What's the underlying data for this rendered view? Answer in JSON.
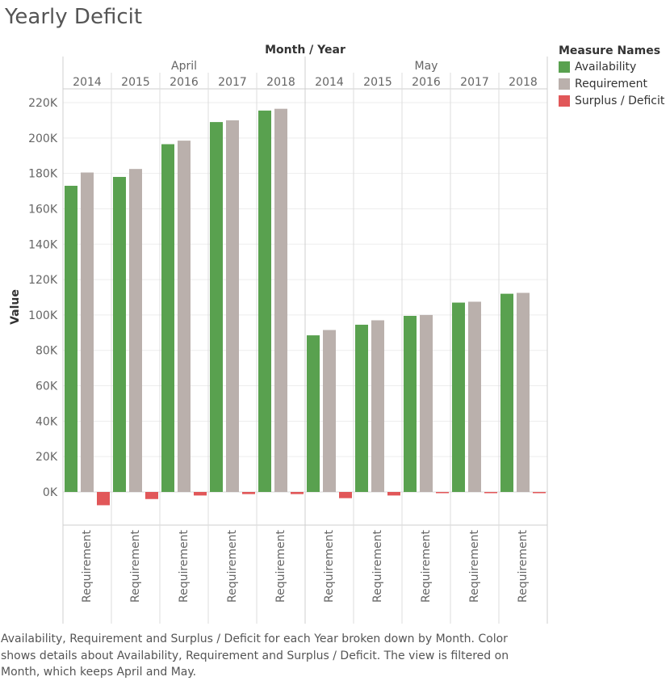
{
  "title": "Yearly Deficit",
  "legend": {
    "title": "Measure Names",
    "items": [
      {
        "label": "Availability",
        "color": "#59a14f"
      },
      {
        "label": "Requirement",
        "color": "#bab0ac"
      },
      {
        "label": "Surplus / Deficit",
        "color": "#e15759"
      }
    ]
  },
  "caption": "Availability, Requirement and Surplus / Deficit for each Year broken down by Month.  Color shows details about Availability, Requirement and Surplus / Deficit. The view is filtered on Month, which keeps April and May.",
  "chart_data": {
    "type": "bar",
    "title": "Yearly Deficit",
    "column_header_title": "Month / Year",
    "ylabel": "Value",
    "ylim": [
      -20000,
      220000
    ],
    "yticks": [
      0,
      20000,
      40000,
      60000,
      80000,
      100000,
      120000,
      140000,
      160000,
      180000,
      200000,
      220000
    ],
    "ytick_labels": [
      "0K",
      "20K",
      "40K",
      "60K",
      "80K",
      "100K",
      "120K",
      "140K",
      "160K",
      "180K",
      "200K",
      "220K"
    ],
    "grid": true,
    "legend_position": "right",
    "months": [
      {
        "label": "April",
        "years": [
          "2014",
          "2015",
          "2016",
          "2017",
          "2018"
        ]
      },
      {
        "label": "May",
        "years": [
          "2014",
          "2015",
          "2016",
          "2017",
          "2018"
        ]
      }
    ],
    "bottom_label": "Requirement",
    "categories": [
      "April 2014",
      "April 2015",
      "April 2016",
      "April 2017",
      "April 2018",
      "May 2014",
      "May 2015",
      "May 2016",
      "May 2017",
      "May 2018"
    ],
    "series": [
      {
        "name": "Availability",
        "color": "#59a14f",
        "values": [
          173000,
          178000,
          196500,
          209000,
          215500,
          88500,
          94500,
          99500,
          107000,
          112000
        ]
      },
      {
        "name": "Requirement",
        "color": "#bab0ac",
        "values": [
          180500,
          182500,
          198500,
          210000,
          216500,
          91500,
          97000,
          100000,
          107500,
          112500
        ]
      },
      {
        "name": "Surplus / Deficit",
        "color": "#e15759",
        "values": [
          -7500,
          -4000,
          -2000,
          -1200,
          -1200,
          -3500,
          -2000,
          -600,
          -600,
          -600
        ]
      }
    ]
  }
}
